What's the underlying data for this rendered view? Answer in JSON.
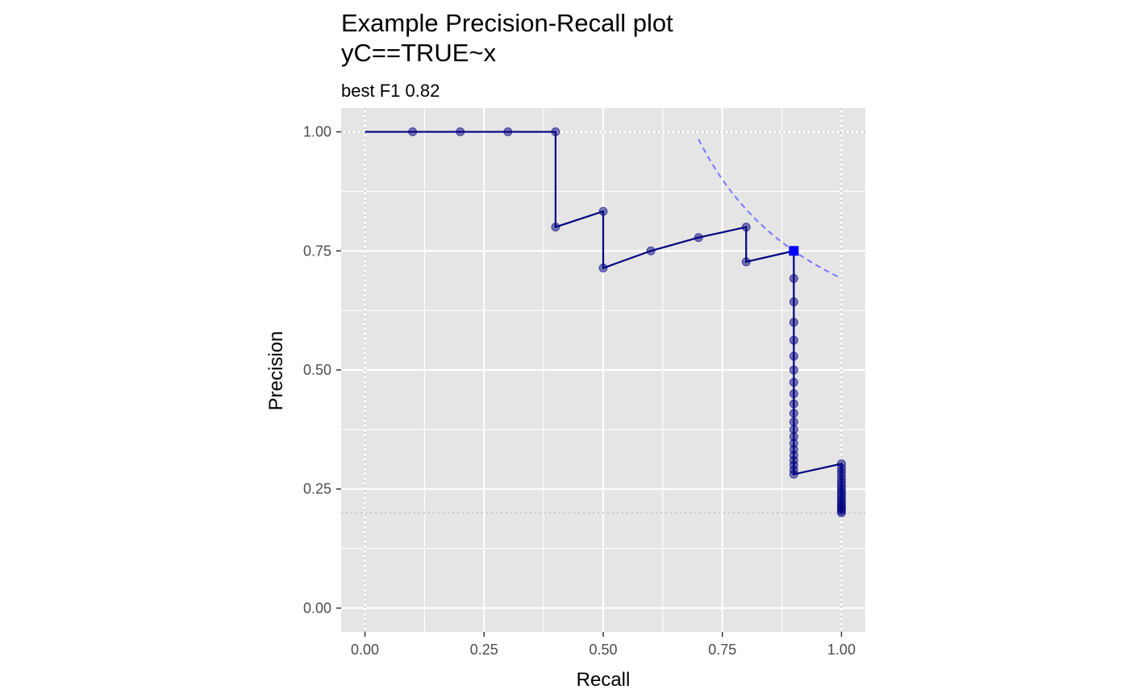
{
  "chart_data": {
    "type": "line",
    "title": "Example Precision-Recall plot",
    "title_line2": "yC==TRUE~x",
    "subtitle": "best F1 0.82",
    "xlabel": "Recall",
    "ylabel": "Precision",
    "xlim": [
      -0.05,
      1.05
    ],
    "ylim": [
      -0.05,
      1.05
    ],
    "x_ticks": [
      0.0,
      0.25,
      0.5,
      0.75,
      1.0
    ],
    "x_tick_labels": [
      "0.00",
      "0.25",
      "0.50",
      "0.75",
      "1.00"
    ],
    "y_ticks": [
      0.0,
      0.25,
      0.5,
      0.75,
      1.0
    ],
    "y_tick_labels": [
      "0.00",
      "0.25",
      "0.50",
      "0.75",
      "1.00"
    ],
    "grid": true,
    "series": [
      {
        "values": [
          [
            0.0,
            1.0
          ],
          [
            0.1,
            1.0
          ],
          [
            0.2,
            1.0
          ],
          [
            0.3,
            1.0
          ],
          [
            0.4,
            1.0
          ],
          [
            0.4,
            0.8
          ],
          [
            0.5,
            0.833
          ],
          [
            0.5,
            0.714
          ],
          [
            0.6,
            0.75
          ],
          [
            0.7,
            0.778
          ],
          [
            0.8,
            0.8
          ],
          [
            0.8,
            0.727
          ],
          [
            0.9,
            0.75
          ],
          [
            0.9,
            0.692
          ],
          [
            0.9,
            0.643
          ],
          [
            0.9,
            0.6
          ],
          [
            0.9,
            0.5625
          ],
          [
            0.9,
            0.529
          ],
          [
            0.9,
            0.5
          ],
          [
            0.9,
            0.474
          ],
          [
            0.9,
            0.45
          ],
          [
            0.9,
            0.429
          ],
          [
            0.9,
            0.409
          ],
          [
            0.9,
            0.391
          ],
          [
            0.9,
            0.375
          ],
          [
            0.9,
            0.36
          ],
          [
            0.9,
            0.346
          ],
          [
            0.9,
            0.333
          ],
          [
            0.9,
            0.321
          ],
          [
            0.9,
            0.31
          ],
          [
            0.9,
            0.3
          ],
          [
            0.9,
            0.29
          ],
          [
            0.9,
            0.281
          ],
          [
            1.0,
            0.303
          ],
          [
            1.0,
            0.294
          ],
          [
            1.0,
            0.286
          ],
          [
            1.0,
            0.278
          ],
          [
            1.0,
            0.27
          ],
          [
            1.0,
            0.263
          ],
          [
            1.0,
            0.256
          ],
          [
            1.0,
            0.25
          ],
          [
            1.0,
            0.244
          ],
          [
            1.0,
            0.238
          ],
          [
            1.0,
            0.233
          ],
          [
            1.0,
            0.227
          ],
          [
            1.0,
            0.222
          ],
          [
            1.0,
            0.217
          ],
          [
            1.0,
            0.213
          ],
          [
            1.0,
            0.208
          ],
          [
            1.0,
            0.204
          ],
          [
            1.0,
            0.2
          ]
        ],
        "color": "#000080"
      }
    ],
    "best_point": {
      "x": 0.9,
      "y": 0.75,
      "color": "#0000ff"
    },
    "f1_contour": {
      "f1": 0.8182,
      "x_range": [
        0.7,
        1.0
      ],
      "color": "#7878ff"
    },
    "reference_lines": {
      "horizontal": [
        1.0,
        0.2
      ],
      "vertical": [
        0.0,
        1.0
      ],
      "color": "#c8c8c8"
    },
    "panel_color": "#e5e5e5"
  }
}
